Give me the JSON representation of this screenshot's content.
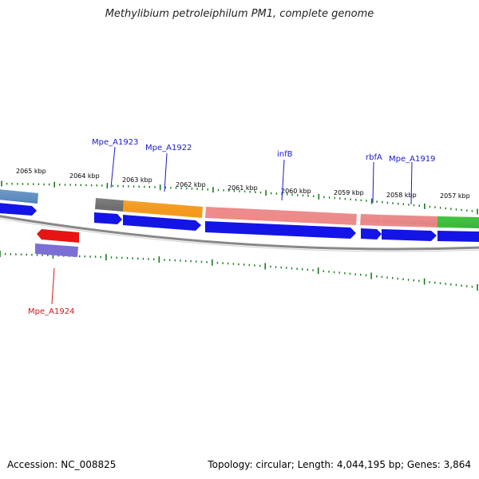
{
  "title": "Methylibium petroleiphilum PM1, complete genome",
  "footer": {
    "accession": "Accession: NC_008825",
    "topology": "Topology: circular; Length: 4,044,195 bp; Genes: 3,864"
  },
  "colors": {
    "backbone": "#888888",
    "tick": "#1c7a1c",
    "label_forward": "#1a1acc",
    "label_reverse": "#d01818",
    "cds_track": "#1414e6"
  },
  "ticks": [
    {
      "label": "2065 kbp"
    },
    {
      "label": "2064 kbp"
    },
    {
      "label": "2063 kbp"
    },
    {
      "label": "2062 kbp"
    },
    {
      "label": "2061 kbp"
    },
    {
      "label": "2060 kbp"
    },
    {
      "label": "2059 kbp"
    },
    {
      "label": "2058 kbp"
    },
    {
      "label": "2057 kbp"
    }
  ],
  "gene_labels": [
    {
      "text": "Mpe_A1923",
      "strand": "forward"
    },
    {
      "text": "Mpe_A1922",
      "strand": "forward"
    },
    {
      "text": "infB",
      "strand": "forward"
    },
    {
      "text": "rbfA",
      "strand": "forward"
    },
    {
      "text": "Mpe_A1919",
      "strand": "forward"
    },
    {
      "text": "Mpe_A1924",
      "strand": "reverse"
    }
  ],
  "features": {
    "forward_cog": [
      {
        "color": "#4a7fb8"
      },
      {
        "color": "#6e6e6e"
      },
      {
        "color": "#f39a1e"
      },
      {
        "color": "#ef8a8a"
      },
      {
        "color": "#ef8a8a"
      },
      {
        "color": "#ef8a8a"
      },
      {
        "color": "#3ec43e"
      }
    ],
    "forward_cds": [
      {
        "color": "#1414e6"
      },
      {
        "color": "#1414e6"
      },
      {
        "color": "#1414e6"
      },
      {
        "color": "#1414e6"
      },
      {
        "color": "#1414e6"
      },
      {
        "color": "#1414e6"
      },
      {
        "color": "#1414e6"
      }
    ],
    "reverse_cds": [
      {
        "color": "#e81414"
      }
    ],
    "reverse_cog": [
      {
        "color": "#7b6fd6"
      }
    ]
  }
}
